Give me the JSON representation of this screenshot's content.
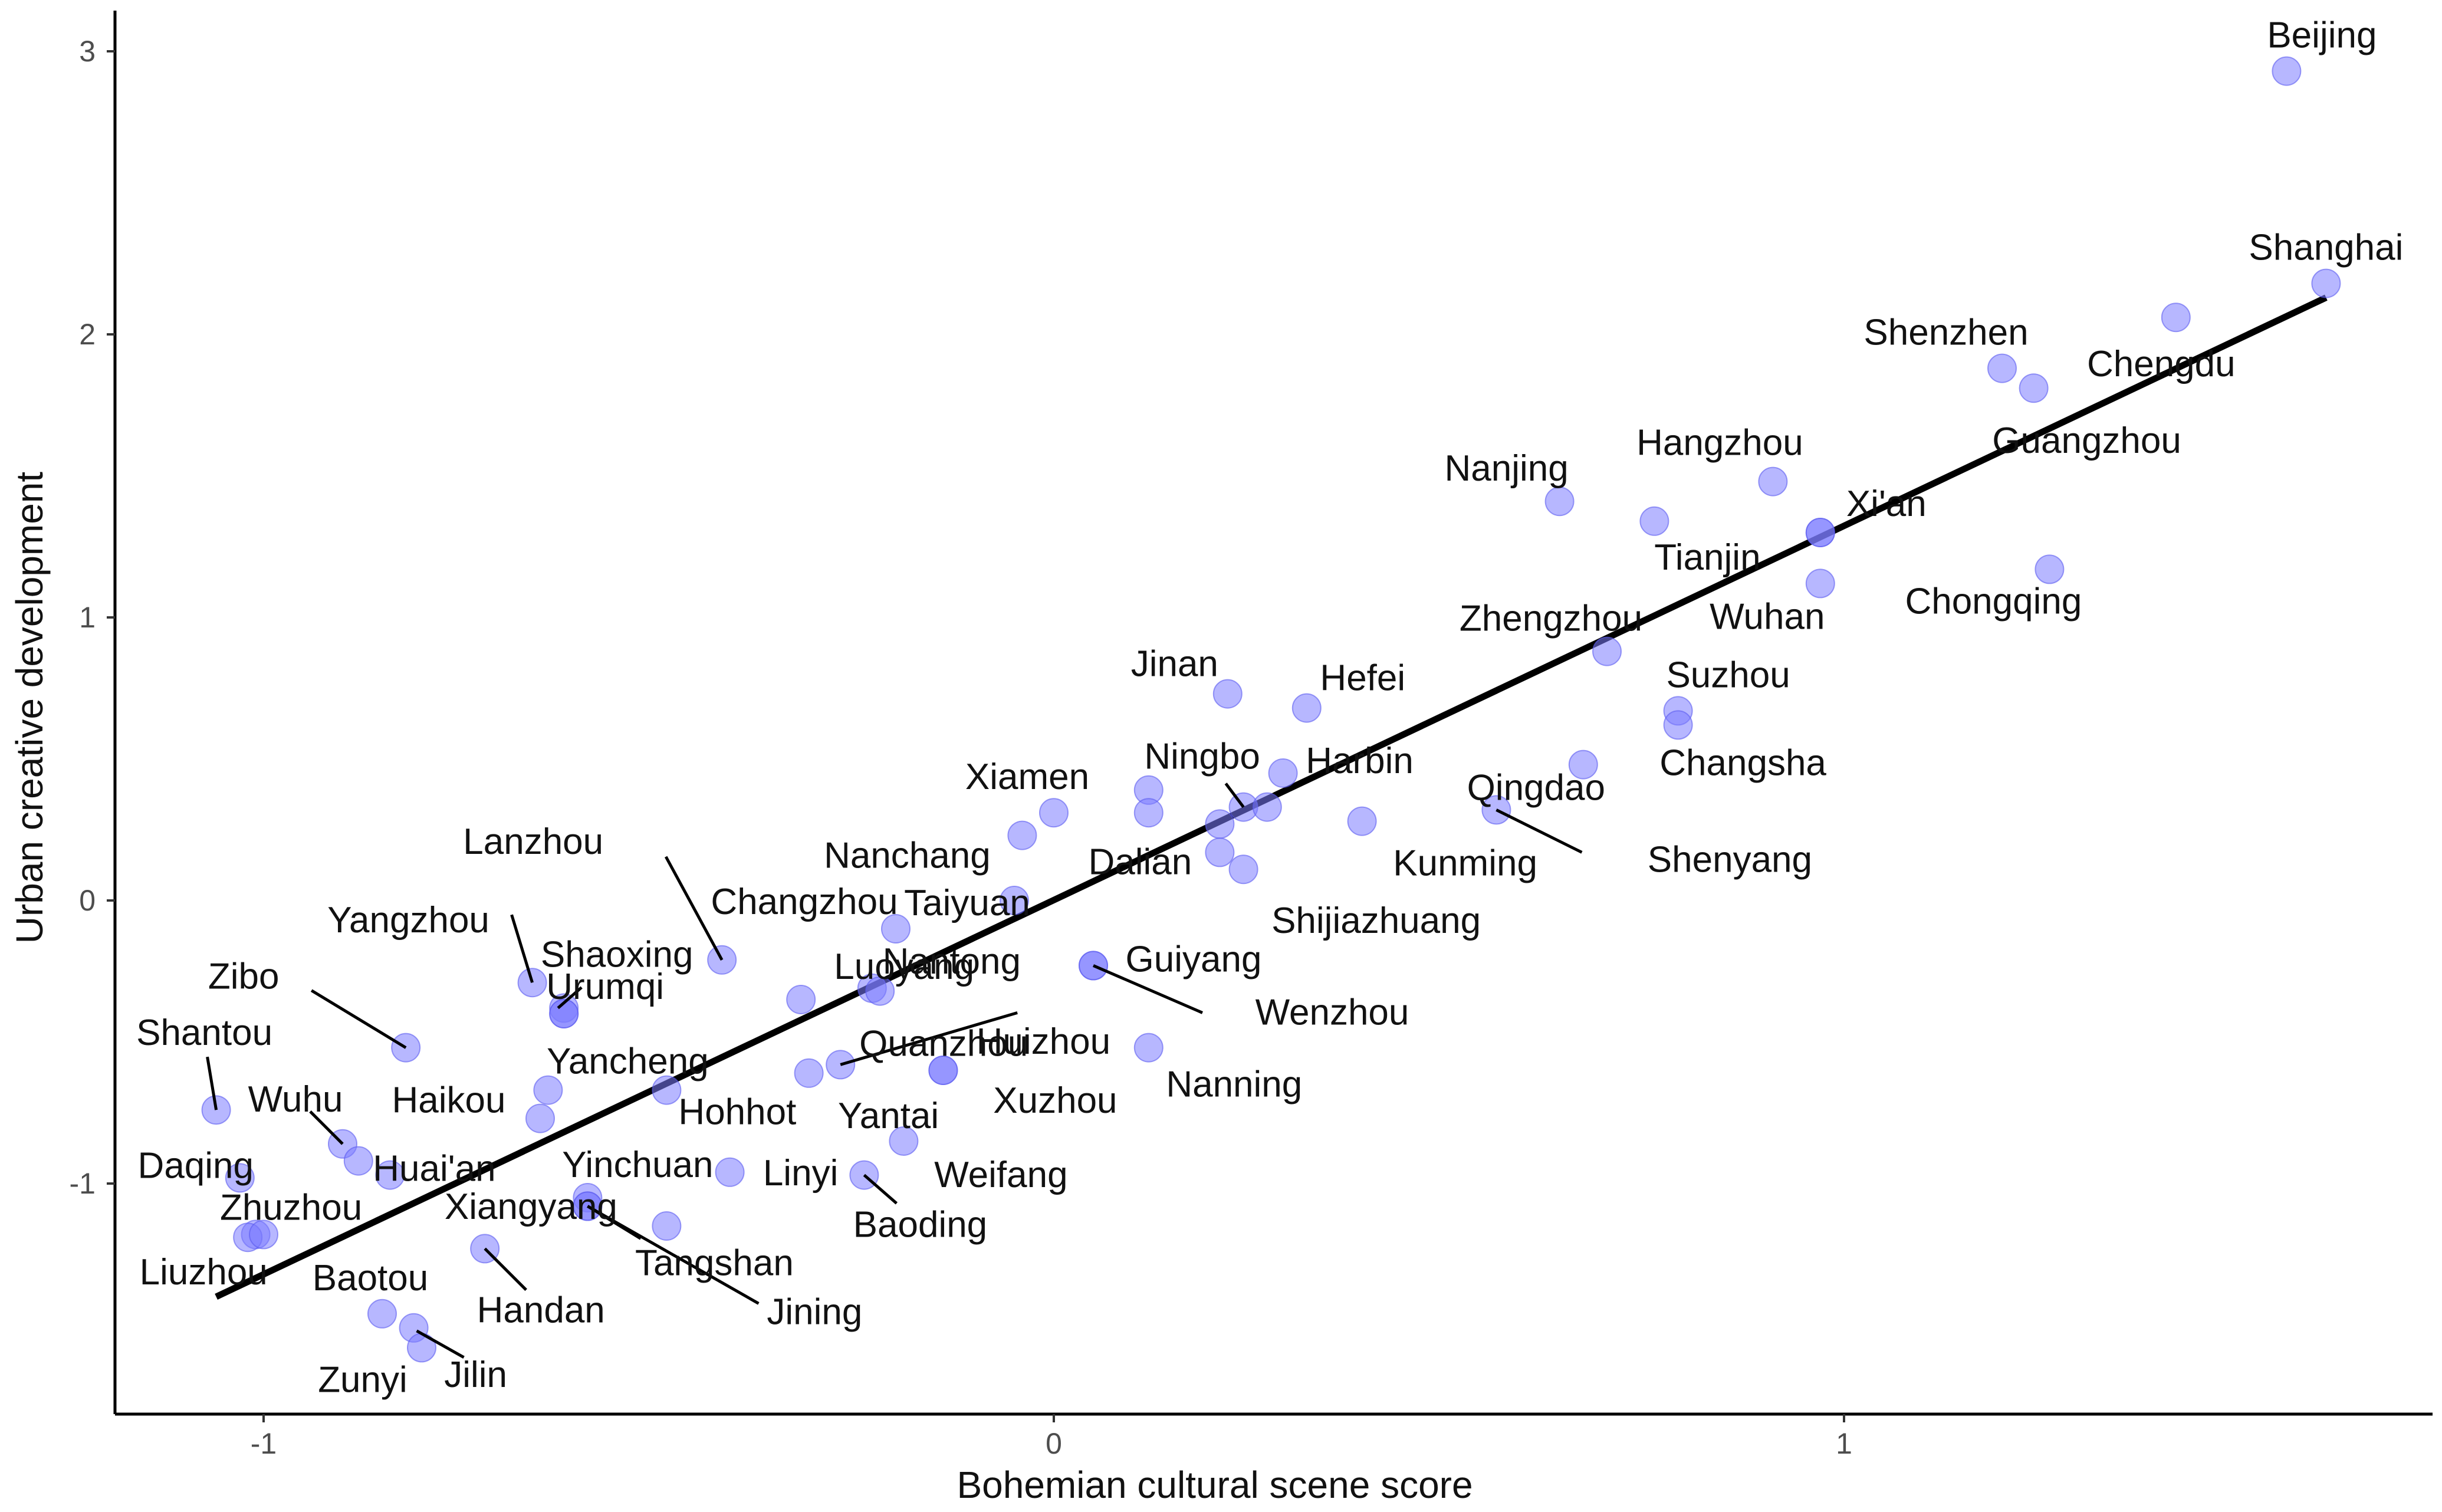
{
  "chart_data": {
    "type": "scatter",
    "title": "",
    "xlabel": "Bohemian cultural scene score",
    "ylabel": "Urban creative development",
    "xlim": [
      -1.2,
      1.73
    ],
    "ylim": [
      -1.8,
      3.15
    ],
    "x_ticks": [
      -1,
      0,
      1
    ],
    "y_ticks": [
      -1,
      0,
      1,
      2,
      3
    ],
    "x_tick_labels": [
      "-1",
      "0",
      "1"
    ],
    "y_tick_labels": [
      "-1",
      "0",
      "1",
      "2",
      "3"
    ],
    "grid": false,
    "legend": "none",
    "point_color": "#7b7bff",
    "fit_line": {
      "x": [
        -1.06,
        1.61
      ],
      "y": [
        -1.4,
        2.13
      ]
    },
    "labeled_points": [
      {
        "name": "Beijing",
        "x": 1.56,
        "y": 2.93
      },
      {
        "name": "Shanghai",
        "x": 1.61,
        "y": 2.18
      },
      {
        "name": "Shenzhen",
        "x": 1.2,
        "y": 1.88
      },
      {
        "name": "Chengdu",
        "x": 1.42,
        "y": 2.06
      },
      {
        "name": "Guangzhou",
        "x": 1.24,
        "y": 1.81
      },
      {
        "name": "Hangzhou",
        "x": 0.91,
        "y": 1.48
      },
      {
        "name": "Nanjing",
        "x": 0.64,
        "y": 1.41
      },
      {
        "name": "Tianjin",
        "x": 0.76,
        "y": 1.34
      },
      {
        "name": "Xi'an",
        "x": 0.97,
        "y": 1.3
      },
      {
        "name": "Chongqing",
        "x": 1.26,
        "y": 1.17
      },
      {
        "name": "Wuhan",
        "x": 0.97,
        "y": 1.12
      },
      {
        "name": "Zhengzhou",
        "x": 0.7,
        "y": 0.88
      },
      {
        "name": "Suzhou",
        "x": 0.79,
        "y": 0.67
      },
      {
        "name": "Changsha",
        "x": 0.79,
        "y": 0.62
      },
      {
        "name": "Jinan",
        "x": 0.22,
        "y": 0.73
      },
      {
        "name": "Hefei",
        "x": 0.32,
        "y": 0.68
      },
      {
        "name": "Harbin",
        "x": 0.29,
        "y": 0.45
      },
      {
        "name": "Qingdao",
        "x": 0.67,
        "y": 0.48
      },
      {
        "name": "Shenyang",
        "x": 0.56,
        "y": 0.32
      },
      {
        "name": "Kunming",
        "x": 0.39,
        "y": 0.28
      },
      {
        "name": "Ningbo",
        "x": 0.24,
        "y": 0.33
      },
      {
        "name": "Xiamen",
        "x": 0.0,
        "y": 0.31
      },
      {
        "name": "Dalian",
        "x": 0.21,
        "y": 0.27
      },
      {
        "name": "Shijiazhuang",
        "x": 0.24,
        "y": 0.11
      },
      {
        "name": "Nanchang",
        "x": -0.04,
        "y": 0.23
      },
      {
        "name": "Taiyuan",
        "x": -0.05,
        "y": 0.0
      },
      {
        "name": "Changzhou",
        "x": -0.2,
        "y": -0.1
      },
      {
        "name": "Lanzhou",
        "x": -0.42,
        "y": -0.21
      },
      {
        "name": "Guiyang",
        "x": 0.05,
        "y": -0.23
      },
      {
        "name": "Wenzhou",
        "x": 0.05,
        "y": -0.23
      },
      {
        "name": "Nantong",
        "x": -0.23,
        "y": -0.31
      },
      {
        "name": "Yangzhou",
        "x": -0.66,
        "y": -0.29
      },
      {
        "name": "Shaoxing",
        "x": -0.62,
        "y": -0.38
      },
      {
        "name": "Zibo",
        "x": -0.82,
        "y": -0.52
      },
      {
        "name": "Urumqi",
        "x": -0.62,
        "y": -0.4
      },
      {
        "name": "Yancheng",
        "x": -0.64,
        "y": -0.67
      },
      {
        "name": "Luoyang",
        "x": -0.32,
        "y": -0.35
      },
      {
        "name": "Quanzhou",
        "x": -0.27,
        "y": -0.58
      },
      {
        "name": "Huizhou",
        "x": -0.14,
        "y": -0.6
      },
      {
        "name": "Nanning",
        "x": 0.12,
        "y": -0.52
      },
      {
        "name": "Xuzhou",
        "x": -0.14,
        "y": -0.6
      },
      {
        "name": "Yantai",
        "x": -0.31,
        "y": -0.61
      },
      {
        "name": "Haikou",
        "x": -0.65,
        "y": -0.77
      },
      {
        "name": "Hohhot",
        "x": -0.49,
        "y": -0.67
      },
      {
        "name": "Shantou",
        "x": -1.06,
        "y": -0.74
      },
      {
        "name": "Wuhu",
        "x": -0.9,
        "y": -0.86
      },
      {
        "name": "Huai'an",
        "x": -0.84,
        "y": -0.97
      },
      {
        "name": "Daqing",
        "x": -1.03,
        "y": -0.98
      },
      {
        "name": "Yinchuan",
        "x": -0.59,
        "y": -1.05
      },
      {
        "name": "Linyi",
        "x": -0.41,
        "y": -0.96
      },
      {
        "name": "Weifang",
        "x": -0.19,
        "y": -0.85
      },
      {
        "name": "Baoding",
        "x": -0.24,
        "y": -0.97
      },
      {
        "name": "Zhuzhou",
        "x": -1.01,
        "y": -1.18
      },
      {
        "name": "Xiangyang",
        "x": -0.49,
        "y": -1.15
      },
      {
        "name": "Tangshan",
        "x": -0.59,
        "y": -1.08
      },
      {
        "name": "Jining",
        "x": -0.59,
        "y": -1.08
      },
      {
        "name": "Liuzhou",
        "x": -1.02,
        "y": -1.19
      },
      {
        "name": "Handan",
        "x": -0.72,
        "y": -1.23
      },
      {
        "name": "Baotou",
        "x": -0.85,
        "y": -1.46
      },
      {
        "name": "Jilin",
        "x": -0.81,
        "y": -1.51
      },
      {
        "name": "Zunyi",
        "x": -0.8,
        "y": -1.58
      }
    ],
    "extra_points": [
      {
        "x": -0.88,
        "y": -0.92
      },
      {
        "x": 0.12,
        "y": 0.39
      },
      {
        "x": 0.12,
        "y": 0.31
      },
      {
        "x": 0.27,
        "y": 0.33
      },
      {
        "x": 0.21,
        "y": 0.17
      },
      {
        "x": -0.22,
        "y": -0.32
      },
      {
        "x": -0.62,
        "y": -0.4
      },
      {
        "x": 0.97,
        "y": 1.3
      },
      {
        "x": -1.0,
        "y": -1.18
      }
    ]
  }
}
